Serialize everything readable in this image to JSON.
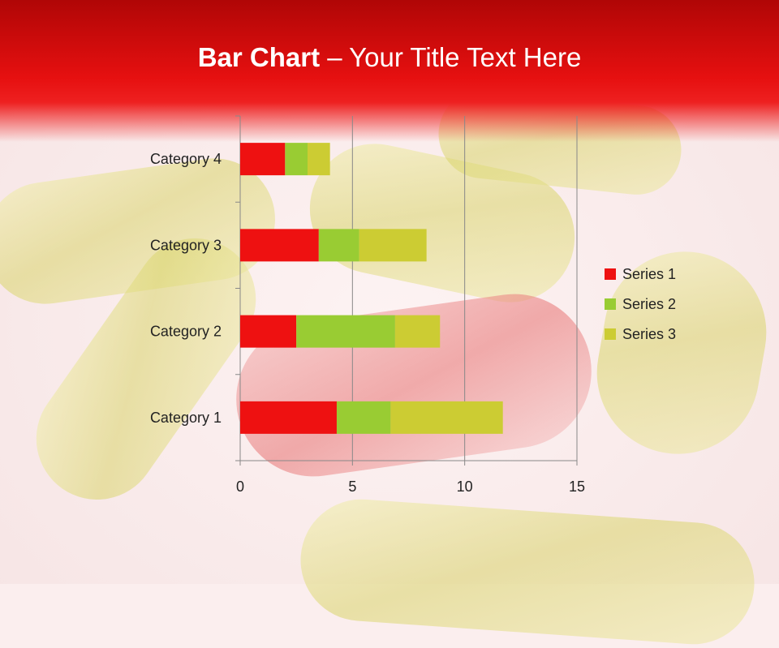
{
  "slide": {
    "title_bold": "Bar Chart",
    "title_rest": " – Your Title Text Here"
  },
  "colors": {
    "header": "#e61010",
    "series": [
      "#ee1111",
      "#99cc33",
      "#cccc33"
    ]
  },
  "chart_data": {
    "type": "bar",
    "orientation": "horizontal",
    "stacked": true,
    "categories": [
      "Category 1",
      "Category 2",
      "Category 3",
      "Category 4"
    ],
    "series": [
      {
        "name": "Series 1",
        "values": [
          4.3,
          2.5,
          3.5,
          2.0
        ]
      },
      {
        "name": "Series 2",
        "values": [
          2.4,
          4.4,
          1.8,
          1.0
        ]
      },
      {
        "name": "Series 3",
        "values": [
          5.0,
          2.0,
          3.0,
          1.0
        ]
      }
    ],
    "xlim": [
      0,
      15
    ],
    "xticks": [
      "0",
      "5",
      "10",
      "15"
    ],
    "grid": true,
    "legend": "right"
  }
}
